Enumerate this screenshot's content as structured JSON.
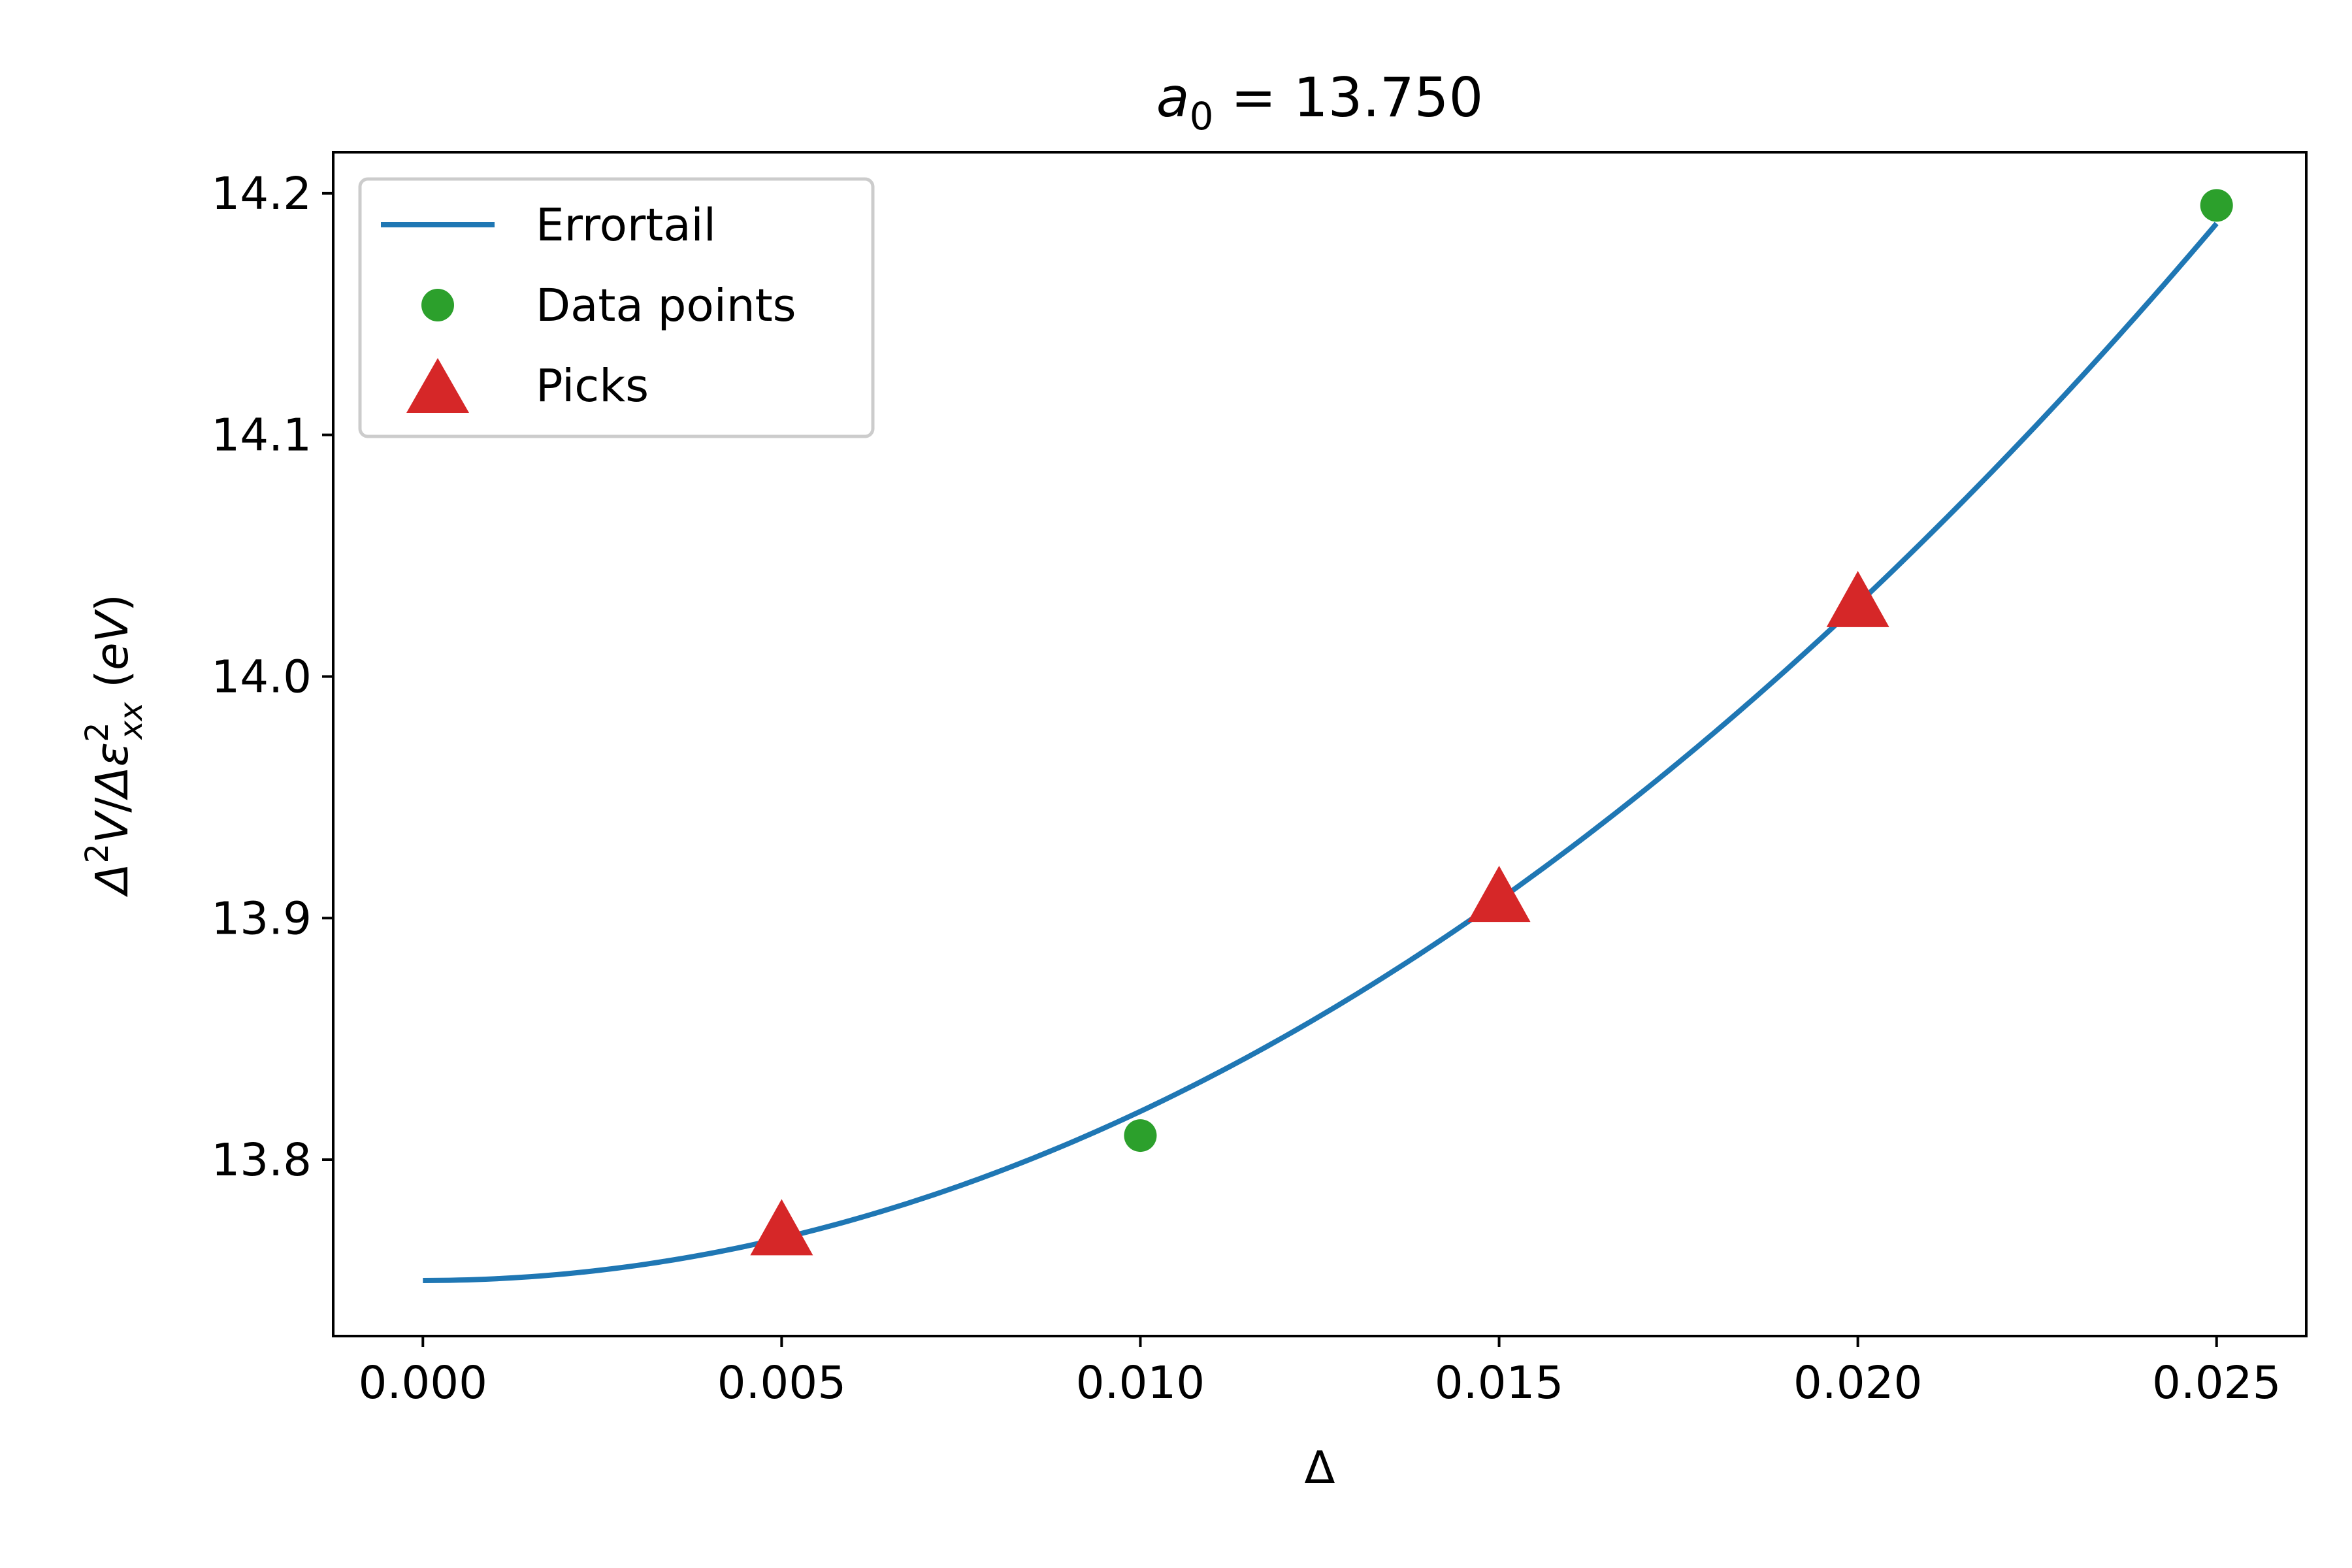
{
  "chart_data": {
    "type": "scatter",
    "title": "a0 = 13.750",
    "title_parts": {
      "symbol": "a",
      "subscript": "0",
      "rest": " = 13.750"
    },
    "xlabel": "Δ",
    "ylabel": "Δ²V/Δε²xx (eV)",
    "xlim": [
      -0.00125,
      0.02625
    ],
    "ylim": [
      13.727,
      14.217
    ],
    "x_ticks": [
      0.0,
      0.005,
      0.01,
      0.015,
      0.02,
      0.025
    ],
    "x_tick_labels": [
      "0.000",
      "0.005",
      "0.010",
      "0.015",
      "0.020",
      "0.025"
    ],
    "y_ticks": [
      13.8,
      13.9,
      14.0,
      14.1,
      14.2
    ],
    "y_tick_labels": [
      "13.8",
      "13.9",
      "14.0",
      "14.1",
      "14.2"
    ],
    "grid": false,
    "legend_position": "top-left",
    "series": [
      {
        "name": "Errortail",
        "kind": "line",
        "color": "#1f77b4",
        "model": {
          "a0": 13.75,
          "a2": 700
        },
        "x_range": [
          0.0,
          0.025
        ]
      },
      {
        "name": "Data points",
        "kind": "scatter",
        "marker": "circle",
        "color": "#2ca02c",
        "x": [
          0.005,
          0.01,
          0.015,
          0.02,
          0.025
        ],
        "y": [
          13.768,
          13.81,
          13.906,
          14.028,
          14.195
        ]
      },
      {
        "name": "Picks",
        "kind": "scatter",
        "marker": "triangle",
        "color": "#d62728",
        "x": [
          0.005,
          0.015,
          0.02
        ],
        "y": [
          13.768,
          13.906,
          14.028
        ]
      }
    ]
  }
}
